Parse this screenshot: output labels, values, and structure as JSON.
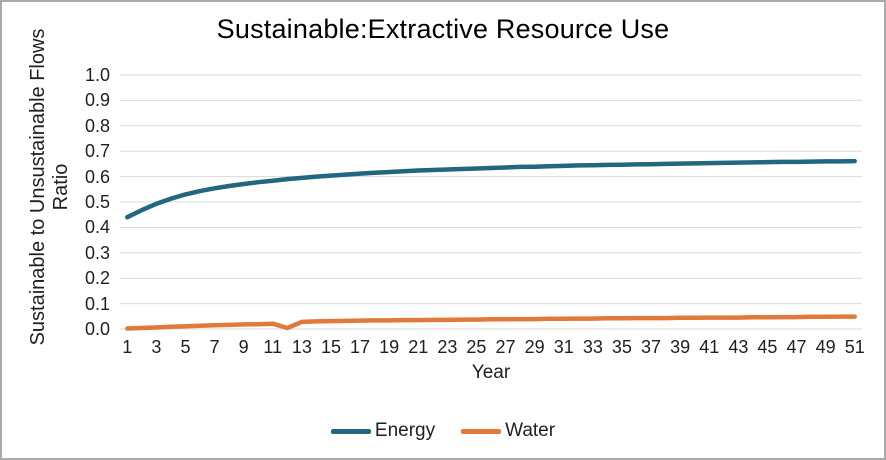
{
  "window": {
    "background": "#ffffff",
    "border_color": "#a9a9a9"
  },
  "chart_data": {
    "type": "line",
    "title": "Sustainable:Extractive Resource Use",
    "xlabel": "Year",
    "ylabel_line1": "Sustainable to Unsustainable Flows",
    "ylabel_line2": "Ratio",
    "ylim": [
      0.0,
      1.0
    ],
    "y_ticks": [
      0.0,
      0.1,
      0.2,
      0.3,
      0.4,
      0.5,
      0.6,
      0.7,
      0.8,
      0.9,
      1.0
    ],
    "x_ticks": [
      1,
      3,
      5,
      7,
      9,
      11,
      13,
      15,
      17,
      19,
      21,
      23,
      25,
      27,
      29,
      31,
      33,
      35,
      37,
      39,
      41,
      43,
      45,
      47,
      49,
      51
    ],
    "x_range": [
      1,
      51
    ],
    "grid": "horizontal",
    "gridline_color": "#d9d9d9",
    "legend_position": "bottom",
    "x": [
      1,
      2,
      3,
      4,
      5,
      6,
      7,
      8,
      9,
      10,
      11,
      12,
      13,
      14,
      15,
      16,
      17,
      18,
      19,
      20,
      21,
      22,
      23,
      24,
      25,
      26,
      27,
      28,
      29,
      30,
      31,
      32,
      33,
      34,
      35,
      36,
      37,
      38,
      39,
      40,
      41,
      42,
      43,
      44,
      45,
      46,
      47,
      48,
      49,
      50,
      51
    ],
    "series": [
      {
        "name": "Energy",
        "color": "#21677f",
        "values": [
          0.44,
          0.468,
          0.493,
          0.513,
          0.53,
          0.543,
          0.554,
          0.563,
          0.571,
          0.578,
          0.584,
          0.59,
          0.595,
          0.6,
          0.604,
          0.608,
          0.612,
          0.615,
          0.618,
          0.621,
          0.624,
          0.626,
          0.628,
          0.63,
          0.632,
          0.634,
          0.636,
          0.638,
          0.639,
          0.641,
          0.642,
          0.644,
          0.645,
          0.646,
          0.647,
          0.648,
          0.649,
          0.65,
          0.651,
          0.652,
          0.653,
          0.654,
          0.655,
          0.656,
          0.657,
          0.658,
          0.658,
          0.659,
          0.66,
          0.66,
          0.661
        ]
      },
      {
        "name": "Water",
        "color": "#e2793b",
        "values": [
          0.002,
          0.004,
          0.006,
          0.009,
          0.011,
          0.013,
          0.015,
          0.016,
          0.018,
          0.019,
          0.021,
          0.004,
          0.028,
          0.03,
          0.031,
          0.032,
          0.033,
          0.034,
          0.034,
          0.035,
          0.035,
          0.036,
          0.036,
          0.037,
          0.037,
          0.038,
          0.038,
          0.039,
          0.039,
          0.04,
          0.04,
          0.041,
          0.041,
          0.042,
          0.042,
          0.043,
          0.043,
          0.043,
          0.044,
          0.044,
          0.045,
          0.045,
          0.045,
          0.046,
          0.046,
          0.047,
          0.047,
          0.048,
          0.048,
          0.049,
          0.049
        ]
      }
    ]
  }
}
